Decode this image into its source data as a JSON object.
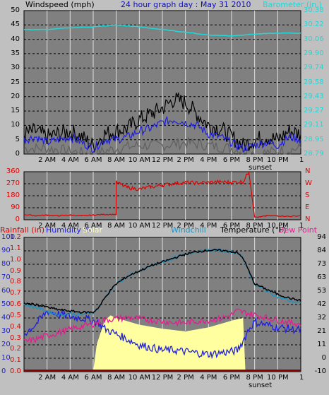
{
  "chart_data": [
    {
      "type": "line",
      "title": "24 hour graph day : May 31 2010",
      "ylabel": "Windspeed (mph)",
      "y2label": "Barometer (in.)",
      "ylim": [
        0,
        50
      ],
      "y2lim": [
        28.79,
        30.38
      ],
      "yticks": [
        "0",
        "5",
        "10",
        "15",
        "20",
        "25",
        "30",
        "35",
        "40",
        "45",
        "50"
      ],
      "y2ticks": [
        "28.79",
        "28.95",
        "29.11",
        "29.27",
        "29.43",
        "29.58",
        "29.74",
        "29.90",
        "30.06",
        "30.22",
        "30.38"
      ],
      "xticks": [
        "2 AM",
        "4 AM",
        "6 AM",
        "8 AM",
        "10 AM",
        "12 PM",
        "2 PM",
        "4 PM",
        "6 PM",
        "8 PM",
        "10 PM"
      ],
      "x_annotation": "sunset",
      "colors": {
        "gust": "#000000",
        "wind": "#2020e0",
        "windmin": "#606060",
        "barometer": "#20d8d8"
      },
      "series": [
        {
          "name": "Barometer (in.)",
          "key": "barometer",
          "axis": "right",
          "x": [
            0,
            2,
            4,
            6,
            8,
            9,
            10,
            12,
            14,
            16,
            18,
            20,
            22,
            24
          ],
          "values": [
            30.17,
            30.17,
            30.19,
            30.2,
            30.22,
            30.21,
            30.2,
            30.17,
            30.14,
            30.11,
            30.1,
            30.12,
            30.13,
            30.13
          ]
        },
        {
          "key": "gust",
          "axis": "left",
          "x": [
            0,
            1,
            2,
            3,
            4,
            5,
            6,
            7,
            8,
            9,
            10,
            11,
            12,
            13,
            14,
            15,
            16,
            17,
            18,
            19,
            20,
            21,
            22,
            23,
            24
          ],
          "values": [
            7,
            8,
            6,
            7,
            8,
            6,
            3,
            7,
            8,
            9,
            12,
            14,
            16,
            19,
            18,
            14,
            10,
            9,
            6,
            3,
            5,
            6,
            5,
            8,
            7
          ]
        },
        {
          "key": "wind",
          "axis": "left",
          "x": [
            0,
            1,
            2,
            3,
            4,
            5,
            6,
            7,
            8,
            9,
            10,
            11,
            12,
            13,
            14,
            15,
            16,
            17,
            18,
            19,
            20,
            21,
            22,
            23,
            24
          ],
          "values": [
            5,
            6,
            4,
            5,
            6,
            4,
            2,
            5,
            5,
            6,
            8,
            9,
            11,
            12,
            11,
            10,
            7,
            6,
            4,
            2,
            3,
            4,
            3,
            6,
            5
          ]
        },
        {
          "key": "windmin",
          "axis": "left",
          "x": [
            0,
            2,
            4,
            6,
            8,
            10,
            12,
            14,
            16,
            18,
            20,
            22,
            24
          ],
          "values": [
            2,
            2,
            1,
            0,
            2,
            3,
            3,
            4,
            3,
            2,
            0,
            1,
            2
          ]
        }
      ]
    },
    {
      "type": "line",
      "yticks": [
        "0",
        "90",
        "180",
        "270",
        "360"
      ],
      "y2ticks": [
        "N",
        "W",
        "S",
        "E",
        "N"
      ],
      "ylim": [
        0,
        360
      ],
      "xticks": [
        "2 AM",
        "4 AM",
        "6 AM",
        "8 AM",
        "10 AM",
        "12 PM",
        "2 PM",
        "4 PM",
        "6 PM",
        "8 PM",
        "10 PM"
      ],
      "color": "#e00000",
      "series": [
        {
          "key": "direction",
          "x": [
            0,
            1,
            2,
            3,
            4,
            5,
            6,
            7,
            7.99,
            8,
            9,
            10,
            11,
            12,
            13,
            14,
            15,
            16,
            17,
            18,
            19,
            19.5,
            20,
            20.5,
            21,
            22,
            23,
            24
          ],
          "values": [
            40,
            30,
            35,
            30,
            35,
            30,
            35,
            40,
            40,
            280,
            240,
            230,
            245,
            260,
            270,
            280,
            275,
            280,
            285,
            280,
            285,
            360,
            20,
            20,
            30,
            30,
            25,
            30
          ]
        }
      ]
    },
    {
      "type": "line",
      "legend": [
        {
          "text": "Rainfall (in)",
          "key": "rainfall",
          "color": "#e00000"
        },
        {
          "text": "Humidity %",
          "key": "humidity",
          "color": "#2020e0"
        },
        {
          "text": "Solar",
          "key": "solar",
          "color": "#ffffc0"
        },
        {
          "text": "Windchill",
          "key": "windchill",
          "color": "#2090c0"
        },
        {
          "text": "Temperature (°F)",
          "key": "temperature",
          "color": "#000000"
        },
        {
          "text": "Dew Point",
          "key": "dewpoint",
          "color": "#e02090"
        }
      ],
      "rain_ticks": [
        "0.0",
        "0.1",
        "0.2",
        "0.3",
        "0.4",
        "0.5",
        "0.6",
        "0.7",
        "0.8",
        "0.9",
        "1.0",
        "1.1",
        "1.2"
      ],
      "humidity_ticks": [
        "0",
        "10",
        "20",
        "30",
        "40",
        "50",
        "60",
        "70",
        "80",
        "90",
        "100"
      ],
      "temp_ticks": [
        "-10",
        "0",
        "11",
        "21",
        "32",
        "42",
        "53",
        "63",
        "73",
        "84",
        "94"
      ],
      "ylim_left": [
        0,
        100
      ],
      "ylim_right": [
        -10,
        94
      ],
      "xticks": [
        "2 AM",
        "4 AM",
        "6 AM",
        "8 AM",
        "10 AM",
        "12 PM",
        "2 PM",
        "4 PM",
        "6 PM",
        "8 PM",
        "10 PM"
      ],
      "x_annotation": "sunset",
      "series": [
        {
          "key": "solar",
          "axis": "left",
          "x": [
            0,
            6,
            6.3,
            6.6,
            7,
            7.5,
            8,
            10,
            12,
            14,
            16,
            18,
            19,
            19.2,
            24
          ],
          "values": [
            0,
            0,
            20,
            28,
            38,
            42,
            40,
            35,
            32,
            30,
            33,
            38,
            40,
            0,
            0
          ]
        },
        {
          "key": "temperature",
          "axis": "right",
          "x": [
            0,
            1,
            2,
            3,
            4,
            5,
            6,
            6.5,
            7,
            7.5,
            8,
            9,
            10,
            11,
            12,
            13,
            14,
            15,
            16,
            17,
            18,
            18.5,
            19,
            19.5,
            20,
            21,
            22,
            23,
            24
          ],
          "values": [
            43,
            42,
            40,
            38,
            37,
            36,
            36,
            40,
            47,
            53,
            58,
            64,
            68,
            72,
            75,
            78,
            81,
            83,
            84,
            84,
            83,
            82,
            78,
            68,
            58,
            54,
            50,
            47,
            45
          ]
        },
        {
          "key": "windchill",
          "axis": "right",
          "x": [
            0,
            1,
            2,
            3,
            4,
            5,
            6,
            6.5,
            7,
            7.5,
            8,
            9,
            10,
            11,
            12,
            13,
            14,
            15,
            16,
            17,
            18,
            18.5,
            19,
            19.5,
            20,
            21,
            22,
            23,
            24
          ],
          "values": [
            42,
            40,
            37,
            34,
            35,
            34,
            36,
            40,
            47,
            53,
            58,
            64,
            68,
            72,
            75,
            78,
            81,
            83,
            84,
            84,
            83,
            82,
            78,
            68,
            57,
            53,
            48,
            45,
            43
          ]
        },
        {
          "key": "humidity",
          "axis": "left",
          "x": [
            0,
            1,
            2,
            3,
            4,
            5,
            6,
            6.5,
            7,
            8,
            9,
            10,
            11,
            12,
            13,
            14,
            15,
            16,
            17,
            18,
            18.5,
            19,
            19.5,
            20,
            21,
            22,
            23,
            24
          ],
          "values": [
            28,
            35,
            45,
            43,
            41,
            40,
            38,
            36,
            32,
            28,
            24,
            20,
            18,
            16,
            16,
            15,
            14,
            13,
            14,
            15,
            16,
            23,
            32,
            37,
            35,
            33,
            32,
            31
          ]
        },
        {
          "key": "dewpoint",
          "axis": "right",
          "x": [
            0,
            1,
            2,
            3,
            4,
            5,
            6,
            7,
            8,
            9,
            10,
            11,
            12,
            13,
            14,
            15,
            16,
            17,
            18,
            18.5,
            19,
            20,
            21,
            22,
            23,
            24
          ],
          "values": [
            13,
            15,
            18,
            20,
            23,
            25,
            27,
            30,
            31,
            32,
            31,
            30,
            29,
            28,
            28,
            29,
            30,
            31,
            34,
            37,
            36,
            34,
            32,
            30,
            28,
            27
          ]
        },
        {
          "key": "rainfall",
          "axis": "left",
          "x": [
            0,
            24
          ],
          "values": [
            0,
            0
          ]
        }
      ]
    }
  ],
  "colors": {
    "panel_bg": "#808080",
    "grid_v": "#e0e0e0",
    "grid_h": "#000000",
    "page_bg": "#c0c0c0",
    "title": "#1010b0",
    "baro_label": "#20d8d8",
    "dir_axis": "#e00000",
    "rain_axis": "#2020e0",
    "rain_ticks": "#e00000",
    "humidity_ticks": "#2020e0",
    "rain_baseline": "#8b0000",
    "rain_fill": "#ffffa0"
  }
}
